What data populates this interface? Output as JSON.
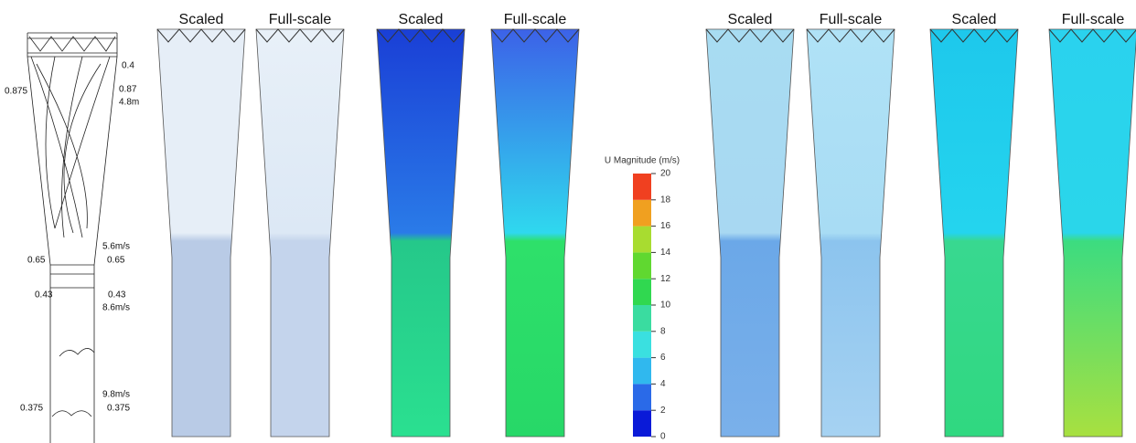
{
  "schematic": {
    "labels": [
      "0.4",
      "0.875",
      "0.87",
      "4.8m",
      "5.6m/s",
      "0.65",
      "0.65",
      "0.43",
      "0.43",
      "8.6m/s",
      "9.8m/s",
      "0.375",
      "0.375"
    ]
  },
  "panels": [
    {
      "title": "Scaled"
    },
    {
      "title": "Full-scale"
    },
    {
      "title": "Scaled"
    },
    {
      "title": "Full-scale"
    },
    {
      "title": "Scaled"
    },
    {
      "title": "Full-scale"
    },
    {
      "title": "Scaled"
    },
    {
      "title": "Full-scale"
    }
  ],
  "colorbar": {
    "title": "U Magnitude (m/s)",
    "ticks": [
      0,
      2,
      4,
      6,
      8,
      10,
      12,
      14,
      16,
      18,
      20
    ]
  }
}
